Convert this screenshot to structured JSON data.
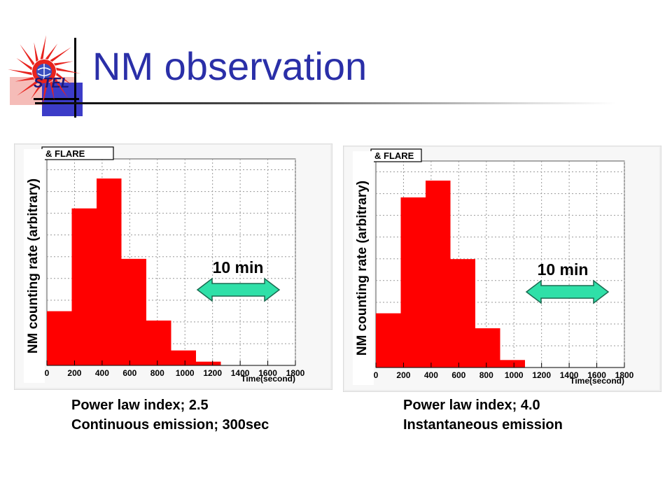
{
  "slide": {
    "title": "NM observation",
    "logo_text": "STEL"
  },
  "colors": {
    "title": "#2a2fa8",
    "bars": "#ff0000",
    "arrow_fill": "#2fe0a8",
    "arrow_stroke": "#1a6a50"
  },
  "chart_data": [
    {
      "type": "bar",
      "legend_text": "& FLARE",
      "xlabel": "Time(second)",
      "ylabel": "NM counting rate (arbitrary)",
      "xlim": [
        0,
        1800
      ],
      "x_ticks": [
        0,
        200,
        400,
        600,
        800,
        1000,
        1200,
        1400,
        1600,
        1800
      ],
      "bin_width": 180,
      "bin_starts": [
        0,
        180,
        360,
        540,
        720,
        900,
        1080
      ],
      "values": [
        0.29,
        0.84,
        1.0,
        0.57,
        0.24,
        0.08,
        0.02
      ],
      "annotation": "10 min",
      "grid": true,
      "caption": [
        "Power law index;  2.5",
        "Continuous emission; 300sec"
      ]
    },
    {
      "type": "bar",
      "legend_text": "& FLARE",
      "xlabel": "Time(second)",
      "ylabel": "NM counting rate (arbitrary)",
      "xlim": [
        0,
        1800
      ],
      "x_ticks": [
        0,
        200,
        400,
        600,
        800,
        1000,
        1200,
        1400,
        1600,
        1800
      ],
      "bin_width": 180,
      "bin_starts": [
        0,
        180,
        360,
        540,
        720,
        900
      ],
      "values": [
        0.29,
        0.91,
        1.0,
        0.58,
        0.21,
        0.04
      ],
      "annotation": "10 min",
      "grid": true,
      "caption": [
        "Power law index;  4.0",
        "Instantaneous emission"
      ]
    }
  ]
}
